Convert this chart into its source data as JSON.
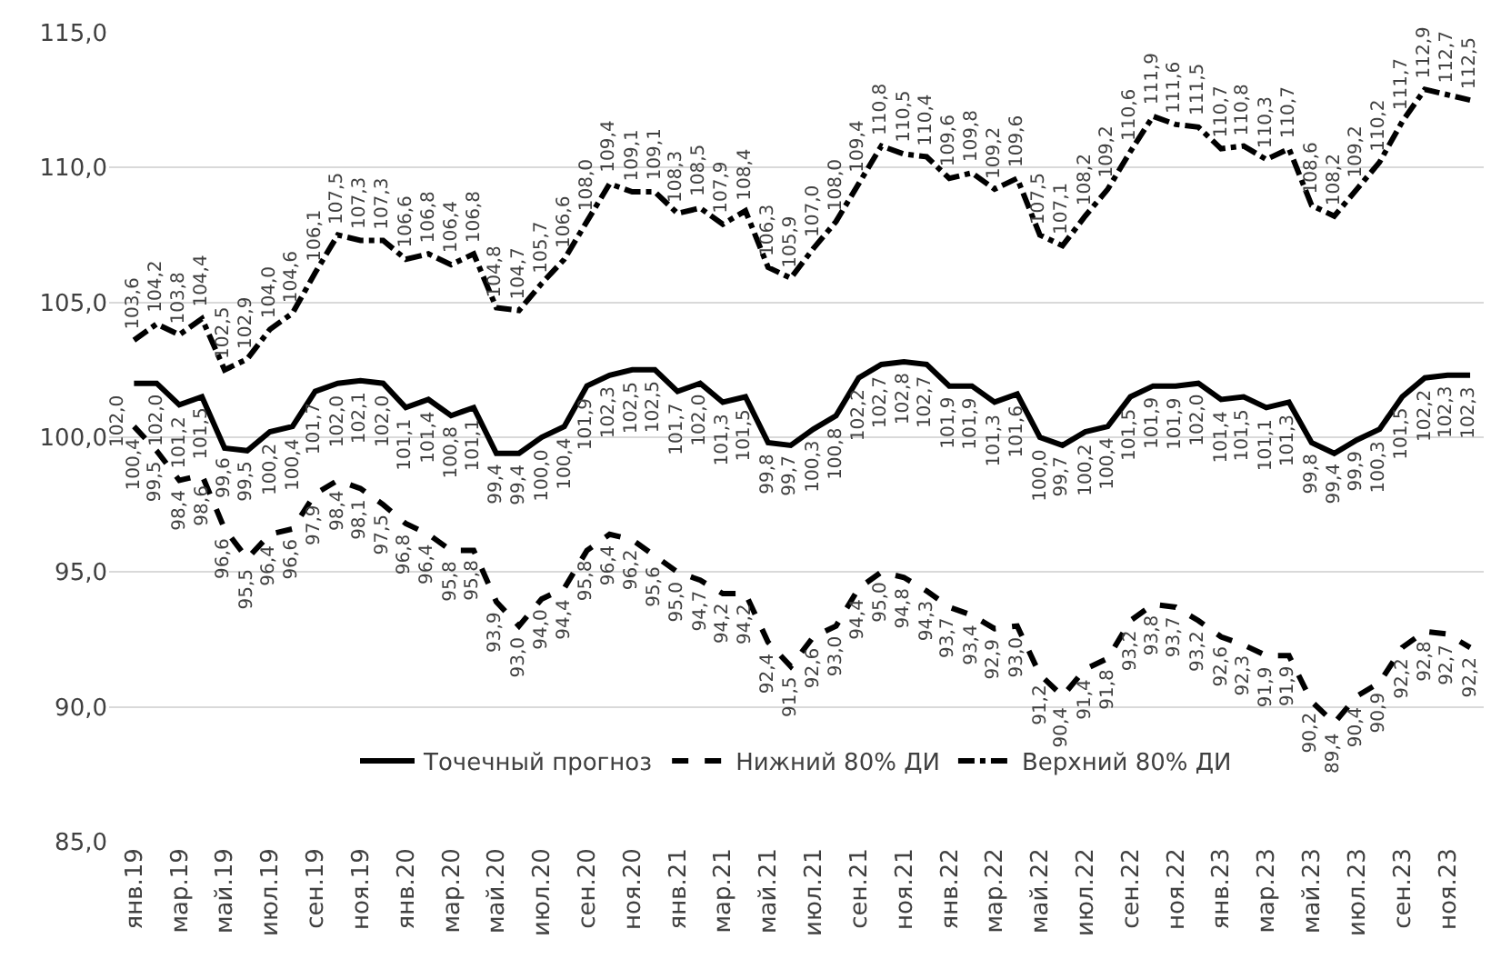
{
  "chart_data": {
    "type": "line",
    "categories": [
      "янв.19",
      null,
      "мар.19",
      null,
      "май.19",
      null,
      "июл.19",
      null,
      "сен.19",
      null,
      "ноя.19",
      null,
      "янв.20",
      null,
      "мар.20",
      null,
      "май.20",
      null,
      "июл.20",
      null,
      "сен.20",
      null,
      "ноя.20",
      null,
      "янв.21",
      null,
      "мар.21",
      null,
      "май.21",
      null,
      "июл.21",
      null,
      "сен.21",
      null,
      "ноя.21",
      null,
      "янв.22",
      null,
      "мар.22",
      null,
      "май.22",
      null,
      "июл.22",
      null,
      "сен.22",
      null,
      "ноя.22",
      null,
      "янв.23",
      null,
      "мар.23",
      null,
      "май.23",
      null,
      "июл.23",
      null,
      "сен.23",
      null,
      "ноя.23",
      null
    ],
    "series": [
      {
        "name": "Точечный прогноз",
        "color": "#000000",
        "line_style": "solid",
        "values": [
          102.0,
          102.0,
          101.2,
          101.5,
          99.6,
          99.5,
          100.2,
          100.4,
          101.7,
          102.0,
          102.1,
          102.0,
          101.1,
          101.4,
          100.8,
          101.1,
          99.4,
          99.4,
          100.0,
          100.4,
          101.9,
          102.3,
          102.5,
          102.5,
          101.7,
          102.0,
          101.3,
          101.5,
          99.8,
          99.7,
          100.3,
          100.8,
          102.2,
          102.7,
          102.8,
          102.7,
          101.9,
          101.9,
          101.3,
          101.6,
          100.0,
          99.7,
          100.2,
          100.4,
          101.5,
          101.9,
          101.9,
          102.0,
          101.4,
          101.5,
          101.1,
          101.3,
          99.8,
          99.4,
          99.9,
          100.3,
          101.5,
          102.2,
          102.3,
          102.3
        ],
        "value_labels": [
          "102,0",
          "102,0",
          "101,2",
          "101,5",
          "99,6",
          "99,5",
          "100,2",
          "100,4",
          "101,7",
          "102,0",
          "102,1",
          "102,0",
          "101,1",
          "101,4",
          "100,8",
          "101,1",
          "99,4",
          "99,4",
          "100,0",
          "100,4",
          "101,9",
          "102,3",
          "102,5",
          "102,5",
          "101,7",
          "102,0",
          "101,3",
          "101,5",
          "99,8",
          "99,7",
          "100,3",
          "100,8",
          "102,2",
          "102,7",
          "102,8",
          "102,7",
          "101,9",
          "101,9",
          "101,3",
          "101,6",
          "100,0",
          "99,7",
          "100,2",
          "100,4",
          "101,5",
          "101,9",
          "101,9",
          "102,0",
          "101,4",
          "101,5",
          "101,1",
          "101,3",
          "99,8",
          "99,4",
          "99,9",
          "100,3",
          "101,5",
          "102,2",
          "102,3",
          "102,3"
        ]
      },
      {
        "name": "Нижний 80% ДИ",
        "color": "#000000",
        "line_style": "dashed",
        "values": [
          100.4,
          99.5,
          98.4,
          98.6,
          96.6,
          95.5,
          96.4,
          96.6,
          97.9,
          98.4,
          98.1,
          97.5,
          96.8,
          96.4,
          95.8,
          95.8,
          93.9,
          93.0,
          94.0,
          94.4,
          95.8,
          96.4,
          96.2,
          95.6,
          95.0,
          94.7,
          94.2,
          94.2,
          92.4,
          91.5,
          92.6,
          93.0,
          94.4,
          95.0,
          94.8,
          94.3,
          93.7,
          93.4,
          92.9,
          93.0,
          91.2,
          90.4,
          91.4,
          91.8,
          93.2,
          93.8,
          93.7,
          93.2,
          92.6,
          92.3,
          91.9,
          91.9,
          90.2,
          89.4,
          90.4,
          90.9,
          92.2,
          92.8,
          92.7,
          92.2
        ],
        "value_labels": [
          "100,4",
          "99,5",
          "98,4",
          "98,6",
          "96,6",
          "95,5",
          "96,4",
          "96,6",
          "97,9",
          "98,4",
          "98,1",
          "97,5",
          "96,8",
          "96,4",
          "95,8",
          "95,8",
          "93,9",
          "93,0",
          "94,0",
          "94,4",
          "95,8",
          "96,4",
          "96,2",
          "95,6",
          "95,0",
          "94,7",
          "94,2",
          "94,2",
          "92,4",
          "91,5",
          "92,6",
          "93,0",
          "94,4",
          "95,0",
          "94,8",
          "94,3",
          "93,7",
          "93,4",
          "92,9",
          "93,0",
          "91,2",
          "90,4",
          "91,4",
          "91,8",
          "93,2",
          "93,8",
          "93,7",
          "93,2",
          "92,6",
          "92,3",
          "91,9",
          "91,9",
          "90,2",
          "89,4",
          "90,4",
          "90,9",
          "92,2",
          "92,8",
          "92,7",
          "92,2"
        ]
      },
      {
        "name": "Верхний 80% ДИ",
        "color": "#000000",
        "line_style": "dashdot",
        "values": [
          103.6,
          104.2,
          103.8,
          104.4,
          102.5,
          102.9,
          104.0,
          104.6,
          106.1,
          107.5,
          107.3,
          107.3,
          106.6,
          106.8,
          106.4,
          106.8,
          104.8,
          104.7,
          105.7,
          106.6,
          108.0,
          109.4,
          109.1,
          109.1,
          108.3,
          108.5,
          107.9,
          108.4,
          106.3,
          105.9,
          107.0,
          108.0,
          109.4,
          110.8,
          110.5,
          110.4,
          109.6,
          109.8,
          109.2,
          109.6,
          107.5,
          107.1,
          108.2,
          109.2,
          110.6,
          111.9,
          111.6,
          111.5,
          110.7,
          110.8,
          110.3,
          110.7,
          108.6,
          108.2,
          109.2,
          110.2,
          111.7,
          112.9,
          112.7,
          112.5
        ],
        "value_labels": [
          "103,6",
          "104,2",
          "103,8",
          "104,4",
          "102,5",
          "102,9",
          "104,0",
          "104,6",
          "106,1",
          "107,5",
          "107,3",
          "107,3",
          "106,6",
          "106,8",
          "106,4",
          "106,8",
          "104,8",
          "104,7",
          "105,7",
          "106,6",
          "108,0",
          "109,4",
          "109,1",
          "109,1",
          "108,3",
          "108,5",
          "107,9",
          "108,4",
          "106,3",
          "105,9",
          "107,0",
          "108,0",
          "109,4",
          "110,8",
          "110,5",
          "110,4",
          "109,6",
          "109,8",
          "109,2",
          "109,6",
          "107,5",
          "107,1",
          "108,2",
          "109,2",
          "110,6",
          "111,9",
          "111,6",
          "111,5",
          "110,7",
          "110,8",
          "110,3",
          "110,7",
          "108,6",
          "108,2",
          "109,2",
          "110,2",
          "111,7",
          "112,9",
          "112,7",
          "112,5"
        ]
      }
    ],
    "ylim": [
      85,
      115
    ],
    "yticks": [
      {
        "value": 85,
        "label": "85,0"
      },
      {
        "value": 90,
        "label": "90,0"
      },
      {
        "value": 95,
        "label": "95,0"
      },
      {
        "value": 100,
        "label": "100,0"
      },
      {
        "value": 105,
        "label": "105,0"
      },
      {
        "value": 110,
        "label": "110,0"
      },
      {
        "value": 115,
        "label": "115,0"
      }
    ],
    "grid": "y",
    "legend": "bottom",
    "marker": "none"
  }
}
